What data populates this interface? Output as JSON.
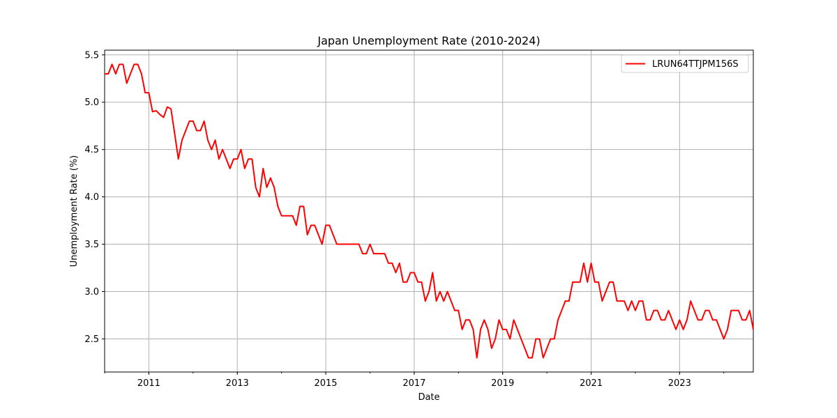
{
  "chart_data": {
    "type": "line",
    "title": "Japan Unemployment Rate (2010-2024)",
    "xlabel": "Date",
    "ylabel": "Unemployment Rate (%)",
    "x_start": "2010-01",
    "x_end": "2024-09",
    "xlim": [
      "2010-01",
      "2024-09"
    ],
    "ylim": [
      2.15,
      5.55
    ],
    "x_ticks": [
      "2011",
      "2013",
      "2015",
      "2017",
      "2019",
      "2021",
      "2023"
    ],
    "y_ticks": [
      "2.5",
      "3.0",
      "3.5",
      "4.0",
      "4.5",
      "5.0",
      "5.5"
    ],
    "grid": true,
    "legend_position": "upper right",
    "series": [
      {
        "name": "LRUN64TTJPM156S",
        "color": "#ff0000",
        "values": [
          5.3,
          5.3,
          5.4,
          5.3,
          5.4,
          5.4,
          5.2,
          5.3,
          5.4,
          5.4,
          5.3,
          5.1,
          5.1,
          4.9,
          4.91,
          4.87,
          4.84,
          4.95,
          4.93,
          4.67,
          4.4,
          4.6,
          4.7,
          4.8,
          4.8,
          4.7,
          4.7,
          4.8,
          4.6,
          4.5,
          4.6,
          4.4,
          4.5,
          4.4,
          4.3,
          4.4,
          4.4,
          4.5,
          4.3,
          4.4,
          4.4,
          4.1,
          4.0,
          4.3,
          4.1,
          4.2,
          4.1,
          3.9,
          3.8,
          3.8,
          3.8,
          3.8,
          3.7,
          3.9,
          3.9,
          3.6,
          3.7,
          3.7,
          3.6,
          3.5,
          3.7,
          3.7,
          3.6,
          3.5,
          3.5,
          3.5,
          3.5,
          3.5,
          3.5,
          3.5,
          3.4,
          3.4,
          3.5,
          3.4,
          3.4,
          3.4,
          3.4,
          3.3,
          3.3,
          3.2,
          3.3,
          3.1,
          3.1,
          3.2,
          3.2,
          3.1,
          3.1,
          2.9,
          3.0,
          3.2,
          2.9,
          3.0,
          2.9,
          3.0,
          2.9,
          2.8,
          2.8,
          2.6,
          2.7,
          2.7,
          2.6,
          2.3,
          2.6,
          2.7,
          2.6,
          2.4,
          2.5,
          2.7,
          2.6,
          2.6,
          2.5,
          2.7,
          2.6,
          2.5,
          2.4,
          2.3,
          2.3,
          2.5,
          2.5,
          2.3,
          2.4,
          2.5,
          2.5,
          2.7,
          2.8,
          2.9,
          2.9,
          3.1,
          3.1,
          3.1,
          3.3,
          3.1,
          3.3,
          3.1,
          3.1,
          2.9,
          3.0,
          3.1,
          3.1,
          2.9,
          2.9,
          2.9,
          2.8,
          2.9,
          2.8,
          2.9,
          2.9,
          2.7,
          2.7,
          2.8,
          2.8,
          2.7,
          2.7,
          2.8,
          2.7,
          2.6,
          2.7,
          2.6,
          2.7,
          2.9,
          2.8,
          2.7,
          2.7,
          2.8,
          2.8,
          2.7,
          2.7,
          2.6,
          2.5,
          2.6,
          2.8,
          2.8,
          2.8,
          2.7,
          2.7,
          2.8,
          2.6,
          2.5,
          2.6
        ]
      }
    ]
  }
}
